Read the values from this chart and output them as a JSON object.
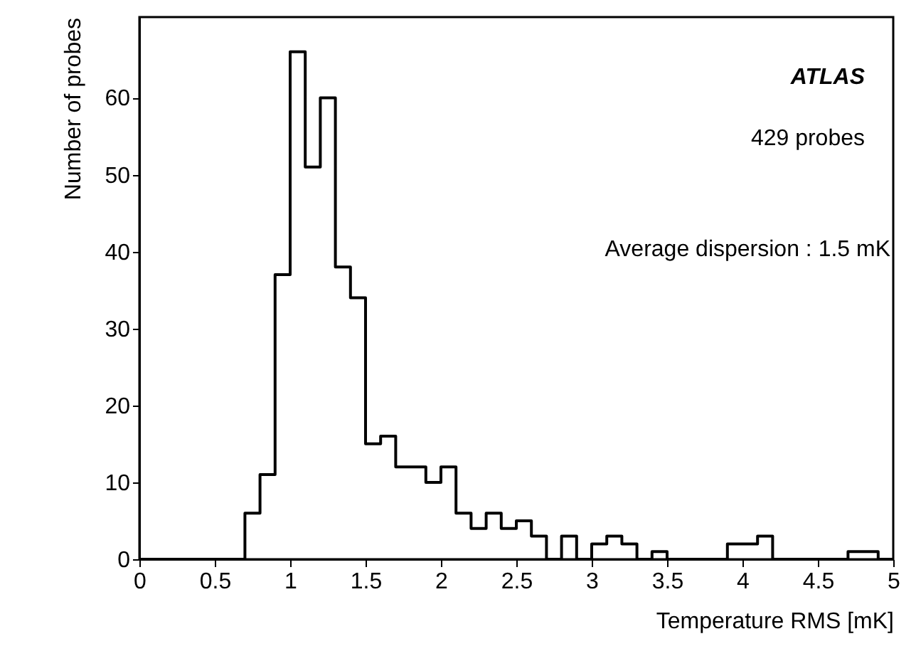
{
  "chart_data": {
    "type": "histogram",
    "xlabel": "Temperature RMS [mK]",
    "ylabel": "Number of probes",
    "bins": [
      0,
      0.1,
      0.2,
      0.3,
      0.4,
      0.5,
      0.6,
      0.7,
      0.8,
      0.9,
      1.0,
      1.1,
      1.2,
      1.3,
      1.4,
      1.5,
      1.6,
      1.7,
      1.8,
      1.9,
      2.0,
      2.1,
      2.2,
      2.3,
      2.4,
      2.5,
      2.6,
      2.7,
      2.8,
      2.9,
      3.0,
      3.1,
      3.2,
      3.3,
      3.4,
      3.5,
      3.6,
      3.7,
      3.8,
      3.9,
      4.0,
      4.1,
      4.2,
      4.3,
      4.4,
      4.5,
      4.6,
      4.7,
      4.8,
      4.9,
      5.0
    ],
    "values": [
      0,
      0,
      0,
      0,
      0,
      0,
      0,
      6,
      11,
      37,
      66,
      51,
      60,
      38,
      34,
      15,
      16,
      12,
      12,
      10,
      12,
      6,
      4,
      6,
      4,
      5,
      3,
      0,
      3,
      0,
      2,
      3,
      2,
      0,
      1,
      0,
      0,
      0,
      0,
      2,
      2,
      3,
      0,
      0,
      0,
      0,
      0,
      1,
      1,
      0
    ],
    "color": "#000000",
    "xlim": [
      0,
      5
    ],
    "xticks": [
      0,
      0.5,
      1,
      1.5,
      2,
      2.5,
      3,
      3.5,
      4,
      4.5,
      5
    ],
    "ylim": [
      0,
      70.5
    ],
    "yticks": [
      0,
      10,
      20,
      30,
      40,
      50,
      60
    ],
    "grid": false,
    "annotations": [
      "ATLAS",
      "429 probes",
      "Average dispersion : 1.5 mK"
    ]
  }
}
